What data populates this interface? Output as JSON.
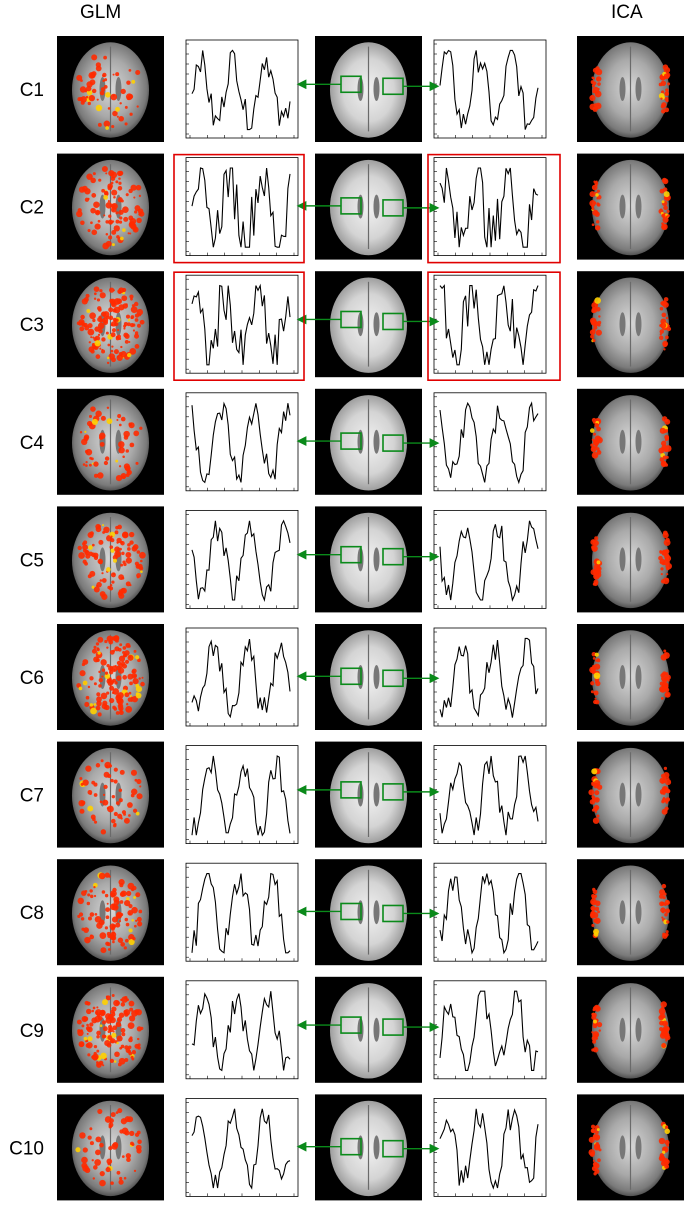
{
  "header": {
    "left_title": "GLM",
    "right_title": "ICA"
  },
  "colors": {
    "activation": "#ff2a00",
    "activation_hot": "#ffd000",
    "roi_box": "#0a8a1a",
    "arrow": "#0a8a1a",
    "highlight_frame": "#e00000",
    "trace": "#000000"
  },
  "rows": [
    {
      "label": "C1",
      "highlighted": false
    },
    {
      "label": "C2",
      "highlighted": true
    },
    {
      "label": "C3",
      "highlighted": true
    },
    {
      "label": "C4",
      "highlighted": false
    },
    {
      "label": "C5",
      "highlighted": false
    },
    {
      "label": "C6",
      "highlighted": false
    },
    {
      "label": "C7",
      "highlighted": false
    },
    {
      "label": "C8",
      "highlighted": false
    },
    {
      "label": "C9",
      "highlighted": false
    },
    {
      "label": "C10",
      "highlighted": false
    }
  ]
}
